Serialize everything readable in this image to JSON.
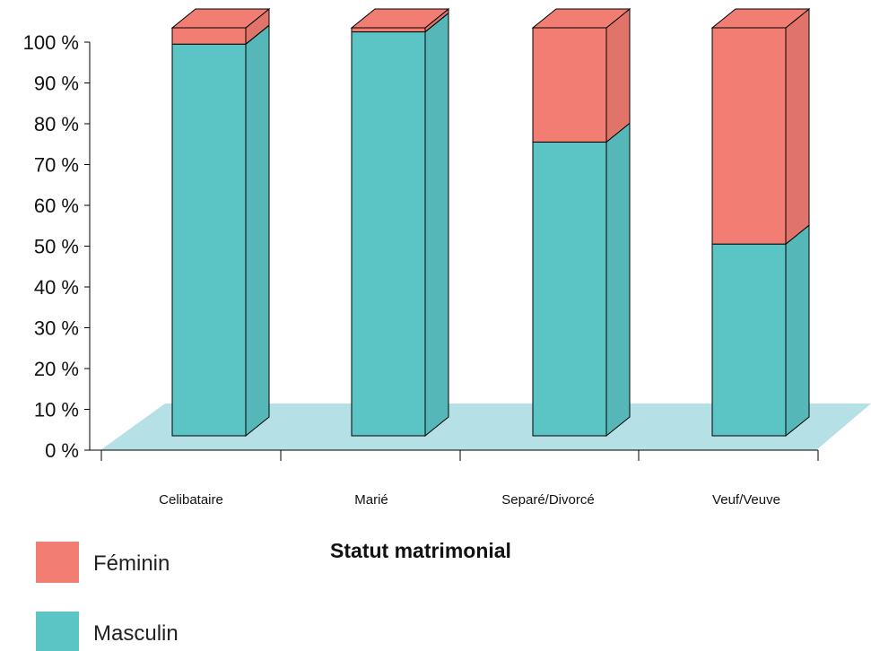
{
  "chart_data": {
    "type": "bar",
    "stacked": true,
    "percent": true,
    "categories": [
      "Celibataire",
      "Marié",
      "Separé/Divorcé",
      "Veuf/Veuve"
    ],
    "series": [
      {
        "name": "Masculin",
        "values": [
          96,
          99,
          72,
          47
        ]
      },
      {
        "name": "Féminin",
        "values": [
          4,
          1,
          28,
          53
        ]
      }
    ],
    "ylim": [
      0,
      100
    ],
    "yticks": [
      "0 %",
      "10 %",
      "20 %",
      "30 %",
      "40 %",
      "50 %",
      "60 %",
      "70 %",
      "80 %",
      "90 %",
      "100 %"
    ],
    "xlabel": "Statut matrimonial",
    "legend_position": "bottom-left",
    "three_d": true
  },
  "colors": {
    "Masculin": "#5bc5c6",
    "Féminin": "#f27d72",
    "floor": "#b4e0e6"
  }
}
